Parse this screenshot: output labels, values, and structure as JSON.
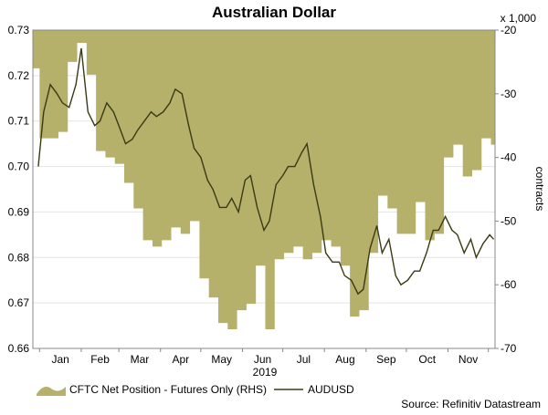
{
  "chart_data": {
    "type": "area",
    "title": "Australian Dollar",
    "x_year_label": "2019",
    "months": [
      "Jan",
      "Feb",
      "Mar",
      "Apr",
      "May",
      "Jun",
      "Jul",
      "Aug",
      "Sep",
      "Oct",
      "Nov"
    ],
    "left_axis": {
      "label": "",
      "min": 0.66,
      "max": 0.73,
      "ticks": [
        "0.73",
        "0.72",
        "0.71",
        "0.70",
        "0.69",
        "0.68",
        "0.67",
        "0.66"
      ]
    },
    "right_axis": {
      "label": "contracts",
      "unit_label": "x 1,000",
      "min": -70,
      "max": -20,
      "ticks": [
        "-20",
        "-30",
        "-40",
        "-50",
        "-60",
        "-70"
      ]
    },
    "series": [
      {
        "name": "CFTC Net Position - Futures Only (RHS)",
        "type": "area",
        "axis": "right",
        "color": "#b5b06a",
        "x": [
          "2018-12-25",
          "2019-01-01",
          "2019-01-08",
          "2019-01-15",
          "2019-01-22",
          "2019-01-29",
          "2019-02-05",
          "2019-02-12",
          "2019-02-19",
          "2019-02-26",
          "2019-03-05",
          "2019-03-12",
          "2019-03-19",
          "2019-03-26",
          "2019-04-02",
          "2019-04-09",
          "2019-04-16",
          "2019-04-23",
          "2019-04-30",
          "2019-05-07",
          "2019-05-14",
          "2019-05-21",
          "2019-05-28",
          "2019-06-04",
          "2019-06-11",
          "2019-06-18",
          "2019-06-25",
          "2019-07-02",
          "2019-07-09",
          "2019-07-16",
          "2019-07-23",
          "2019-07-30",
          "2019-08-06",
          "2019-08-13",
          "2019-08-20",
          "2019-08-27",
          "2019-09-03",
          "2019-09-10",
          "2019-09-17",
          "2019-09-24",
          "2019-10-01",
          "2019-10-08",
          "2019-10-15",
          "2019-10-22",
          "2019-10-29",
          "2019-11-05",
          "2019-11-12",
          "2019-11-19",
          "2019-11-26",
          "2019-12-03"
        ],
        "values": [
          -26,
          -37,
          -37,
          -36,
          -25,
          -22,
          -27,
          -39,
          -40,
          -41,
          -44,
          -48,
          -53,
          -54,
          -53,
          -51,
          -52,
          -50,
          -59,
          -62,
          -66,
          -67,
          -64,
          -63,
          -57,
          -67,
          -56,
          -55,
          -54,
          -56,
          -55,
          -53,
          -54,
          -57,
          -65,
          -64,
          -55,
          -46,
          -48,
          -52,
          -52,
          -47,
          -53,
          -52,
          -40,
          -38,
          -43,
          -42,
          -37,
          -38
        ]
      },
      {
        "name": "AUDUSD",
        "type": "line",
        "axis": "left",
        "color": "#3a3a14",
        "x": [
          "2018-12-31",
          "2019-01-04",
          "2019-01-09",
          "2019-01-14",
          "2019-01-18",
          "2019-01-23",
          "2019-01-28",
          "2019-02-01",
          "2019-02-06",
          "2019-02-11",
          "2019-02-15",
          "2019-02-20",
          "2019-02-25",
          "2019-03-01",
          "2019-03-06",
          "2019-03-11",
          "2019-03-15",
          "2019-03-20",
          "2019-03-25",
          "2019-03-29",
          "2019-04-03",
          "2019-04-08",
          "2019-04-12",
          "2019-04-17",
          "2019-04-22",
          "2019-04-26",
          "2019-05-01",
          "2019-05-06",
          "2019-05-10",
          "2019-05-15",
          "2019-05-20",
          "2019-05-24",
          "2019-05-29",
          "2019-06-03",
          "2019-06-07",
          "2019-06-12",
          "2019-06-17",
          "2019-06-21",
          "2019-06-26",
          "2019-07-01",
          "2019-07-05",
          "2019-07-10",
          "2019-07-15",
          "2019-07-19",
          "2019-07-24",
          "2019-07-29",
          "2019-08-02",
          "2019-08-07",
          "2019-08-12",
          "2019-08-16",
          "2019-08-21",
          "2019-08-26",
          "2019-08-30",
          "2019-09-04",
          "2019-09-09",
          "2019-09-13",
          "2019-09-18",
          "2019-09-23",
          "2019-09-27",
          "2019-10-02",
          "2019-10-07",
          "2019-10-11",
          "2019-10-16",
          "2019-10-21",
          "2019-10-25",
          "2019-10-30",
          "2019-11-04",
          "2019-11-08",
          "2019-11-13",
          "2019-11-18",
          "2019-11-22",
          "2019-11-27",
          "2019-12-02",
          "2019-12-05"
        ],
        "values": [
          0.7,
          0.712,
          0.718,
          0.716,
          0.714,
          0.713,
          0.718,
          0.726,
          0.712,
          0.709,
          0.71,
          0.714,
          0.712,
          0.709,
          0.705,
          0.706,
          0.708,
          0.71,
          0.712,
          0.711,
          0.712,
          0.714,
          0.717,
          0.716,
          0.709,
          0.704,
          0.702,
          0.697,
          0.695,
          0.691,
          0.691,
          0.693,
          0.69,
          0.697,
          0.698,
          0.691,
          0.686,
          0.688,
          0.696,
          0.698,
          0.7,
          0.7,
          0.703,
          0.705,
          0.696,
          0.689,
          0.681,
          0.679,
          0.679,
          0.676,
          0.675,
          0.672,
          0.673,
          0.682,
          0.687,
          0.681,
          0.684,
          0.676,
          0.674,
          0.675,
          0.677,
          0.677,
          0.681,
          0.686,
          0.686,
          0.689,
          0.686,
          0.685,
          0.681,
          0.684,
          0.68,
          0.683,
          0.685,
          0.684
        ]
      }
    ],
    "legend": {
      "placement": "bottom",
      "items": [
        "CFTC Net Position - Futures Only (RHS)",
        "AUDUSD"
      ]
    },
    "source": "Source: Refinitiv Datastream",
    "grid": true
  }
}
